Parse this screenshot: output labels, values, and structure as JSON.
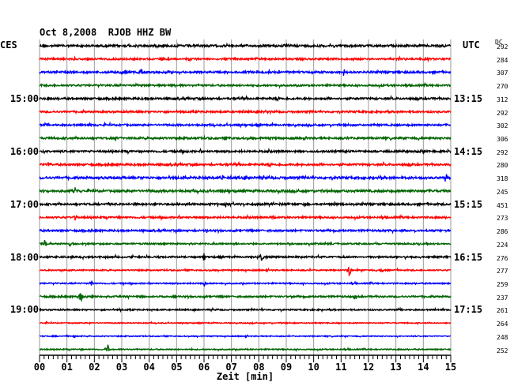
{
  "header": {
    "date": "Oct 8,2008",
    "station": "RJOB HHZ BW"
  },
  "left_zone": "CES",
  "right_zone": "UTC",
  "dc_heading": "DC",
  "chart_data": {
    "type": "line",
    "title": "Oct 8,2008  RJOB HHZ BW",
    "xlabel": "Zeit [min]",
    "xlim": [
      0,
      15
    ],
    "x_ticks": [
      "00",
      "01",
      "02",
      "03",
      "04",
      "05",
      "06",
      "07",
      "08",
      "09",
      "10",
      "11",
      "12",
      "13",
      "14",
      "15"
    ],
    "grid": true,
    "line_minutes": 15,
    "colors": [
      "#000000",
      "#ff0000",
      "#0000ff",
      "#006400"
    ],
    "left_time_labels": [
      {
        "trace": 4,
        "label": "15:00"
      },
      {
        "trace": 8,
        "label": "16:00"
      },
      {
        "trace": 12,
        "label": "17:00"
      },
      {
        "trace": 16,
        "label": "18:00"
      },
      {
        "trace": 20,
        "label": "19:00"
      }
    ],
    "right_time_labels": [
      {
        "trace": 0,
        "label": "UTC"
      },
      {
        "trace": 4,
        "label": "13:15"
      },
      {
        "trace": 8,
        "label": "14:15"
      },
      {
        "trace": 12,
        "label": "15:15"
      },
      {
        "trace": 16,
        "label": "16:15"
      },
      {
        "trace": 20,
        "label": "17:15"
      }
    ],
    "dc_offsets": [
      "292",
      "284",
      "307",
      "270",
      "312",
      "292",
      "302",
      "306",
      "292",
      "280",
      "318",
      "245",
      "451",
      "273",
      "286",
      "224",
      "276",
      "277",
      "259",
      "237",
      "261",
      "264",
      "248",
      "252"
    ],
    "trace_noise": [
      1.3,
      1.1,
      1.2,
      1.1,
      1.2,
      1.1,
      1.1,
      1.2,
      1.2,
      1.2,
      1.4,
      1.4,
      1.2,
      1.1,
      1.1,
      0.9,
      1.0,
      0.8,
      0.8,
      1.0,
      0.8,
      0.6,
      0.6,
      0.7
    ],
    "events": [
      {
        "trace": 1,
        "minute": 7.9,
        "amp": 4
      },
      {
        "trace": 2,
        "minute": 3.0,
        "amp": 5
      },
      {
        "trace": 2,
        "minute": 3.7,
        "amp": 7
      },
      {
        "trace": 2,
        "minute": 11.1,
        "amp": 5
      },
      {
        "trace": 5,
        "minute": 8.3,
        "amp": 4
      },
      {
        "trace": 7,
        "minute": 2.8,
        "amp": 4
      },
      {
        "trace": 8,
        "minute": 12.7,
        "amp": 4
      },
      {
        "trace": 9,
        "minute": 0.3,
        "amp": 4
      },
      {
        "trace": 10,
        "minute": 6.7,
        "amp": 4
      },
      {
        "trace": 10,
        "minute": 14.8,
        "amp": 5
      },
      {
        "trace": 11,
        "minute": 1.3,
        "amp": 4
      },
      {
        "trace": 12,
        "minute": 6.8,
        "amp": 4
      },
      {
        "trace": 13,
        "minute": 1.3,
        "amp": 4
      },
      {
        "trace": 13,
        "minute": 8.5,
        "amp": 4
      },
      {
        "trace": 14,
        "minute": 6.1,
        "amp": 4
      },
      {
        "trace": 15,
        "minute": 0.2,
        "amp": 7
      },
      {
        "trace": 15,
        "minute": 1.1,
        "amp": 4
      },
      {
        "trace": 16,
        "minute": 6.0,
        "amp": 8
      },
      {
        "trace": 16,
        "minute": 8.1,
        "amp": 5
      },
      {
        "trace": 17,
        "minute": 11.3,
        "amp": 9
      },
      {
        "trace": 17,
        "minute": 12.5,
        "amp": 3
      },
      {
        "trace": 18,
        "minute": 1.9,
        "amp": 5
      },
      {
        "trace": 18,
        "minute": 6.0,
        "amp": 4
      },
      {
        "trace": 19,
        "minute": 1.5,
        "amp": 11
      },
      {
        "trace": 19,
        "minute": 11.5,
        "amp": 5
      },
      {
        "trace": 22,
        "minute": 1.3,
        "amp": 3
      },
      {
        "trace": 23,
        "minute": 2.5,
        "amp": 12
      }
    ]
  }
}
